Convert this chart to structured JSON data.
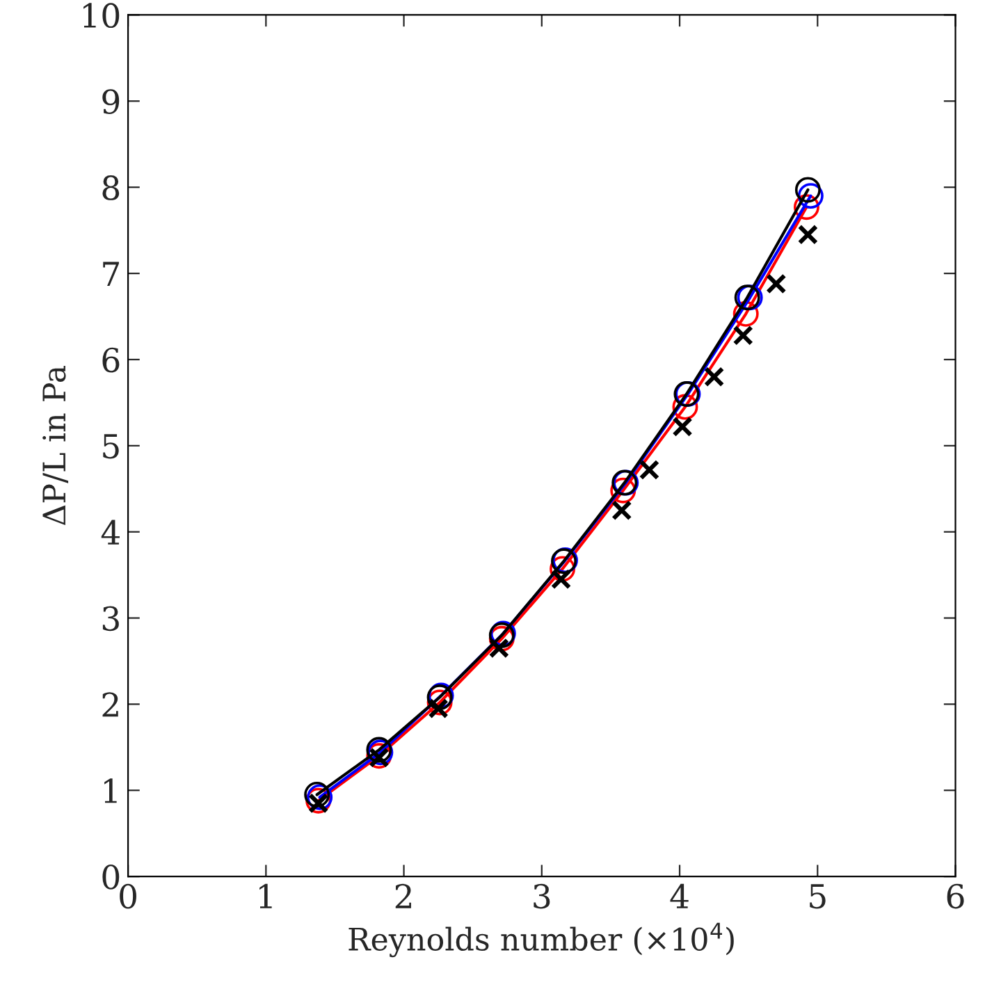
{
  "chart_data": {
    "type": "line",
    "xlabel": "Reynolds number (×10$^{4}$)",
    "ylabel": "ΔP/L in Pa",
    "xlim": [
      0,
      6
    ],
    "ylim": [
      0,
      10
    ],
    "xticks": [
      0,
      1,
      2,
      3,
      4,
      5,
      6
    ],
    "yticks": [
      0,
      1,
      2,
      3,
      4,
      5,
      6,
      7,
      8,
      9,
      10
    ],
    "grid": false,
    "legend": false,
    "marker": "circle",
    "line_style": "solid",
    "series": [
      {
        "color": "#000000",
        "x": [
          1.37,
          1.82,
          2.26,
          2.71,
          3.16,
          3.6,
          4.05,
          4.49,
          4.93
        ],
        "values": [
          0.95,
          1.47,
          2.08,
          2.8,
          3.66,
          4.57,
          5.6,
          6.72,
          7.97
        ]
      },
      {
        "color": "#0000ff",
        "x": [
          1.39,
          1.83,
          2.27,
          2.72,
          3.17,
          3.61,
          4.06,
          4.51,
          4.95
        ],
        "values": [
          0.92,
          1.44,
          2.1,
          2.82,
          3.67,
          4.57,
          5.6,
          6.72,
          7.9
        ]
      },
      {
        "color": "#ff0000",
        "x": [
          1.38,
          1.82,
          2.26,
          2.71,
          3.15,
          3.59,
          4.04,
          4.48,
          4.92
        ],
        "values": [
          0.88,
          1.4,
          2.02,
          2.76,
          3.57,
          4.48,
          5.45,
          6.53,
          7.77
        ]
      },
      {
        "type": "scatter",
        "marker": "cross",
        "color": "#000000",
        "x": [
          1.38,
          1.82,
          2.25,
          2.69,
          3.14,
          3.58,
          3.78,
          4.02,
          4.25,
          4.46,
          4.7,
          4.93
        ],
        "values": [
          0.85,
          1.38,
          1.95,
          2.65,
          3.45,
          4.25,
          4.72,
          5.22,
          5.8,
          6.28,
          6.88,
          7.45
        ]
      }
    ]
  }
}
